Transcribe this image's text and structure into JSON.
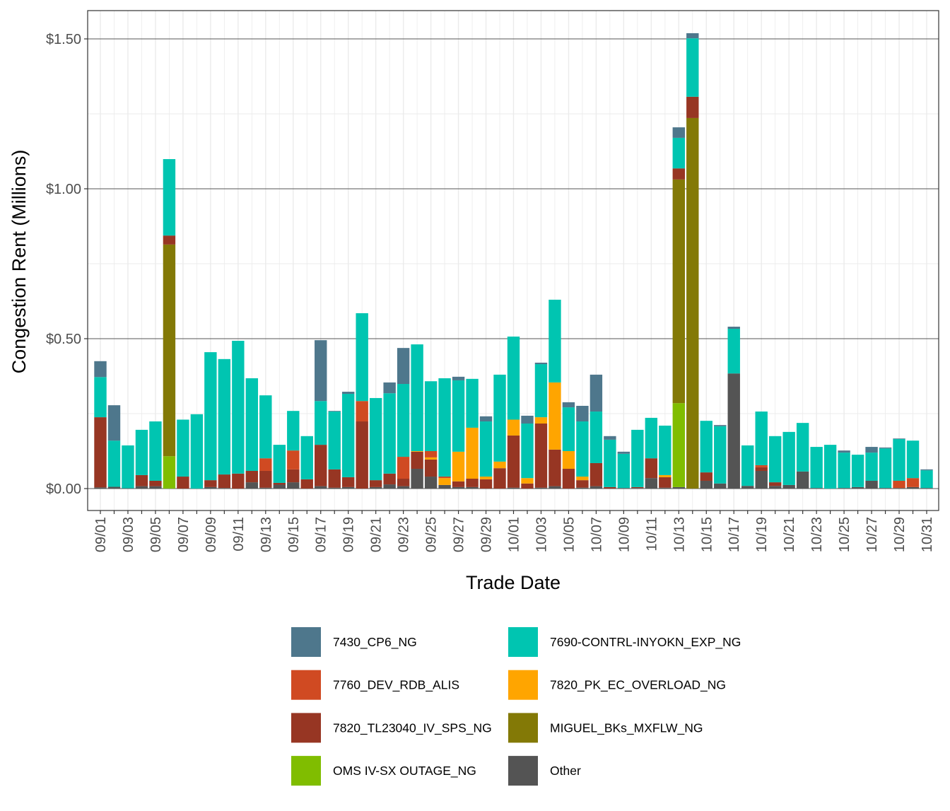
{
  "chart_data": {
    "type": "bar",
    "stacked": true,
    "title": "",
    "xlabel": "Trade Date",
    "ylabel": "Congestion Rent (Millions)",
    "ylim": [
      -0.075,
      1.58
    ],
    "yticks": [
      0,
      0.5,
      1.0,
      1.5
    ],
    "ytick_labels": [
      "$0.00",
      "$0.50",
      "$1.00",
      "$1.50"
    ],
    "grid": true,
    "legend_position": "bottom",
    "categories": [
      "09/01",
      "09/02",
      "09/03",
      "09/04",
      "09/05",
      "09/06",
      "09/07",
      "09/08",
      "09/09",
      "09/10",
      "09/11",
      "09/12",
      "09/13",
      "09/14",
      "09/15",
      "09/16",
      "09/17",
      "09/18",
      "09/19",
      "09/20",
      "09/21",
      "09/22",
      "09/23",
      "09/24",
      "09/25",
      "09/26",
      "09/27",
      "09/28",
      "09/29",
      "09/30",
      "10/01",
      "10/02",
      "10/03",
      "10/04",
      "10/05",
      "10/06",
      "10/07",
      "10/08",
      "10/09",
      "10/10",
      "10/11",
      "10/12",
      "10/13",
      "10/14",
      "10/15",
      "10/16",
      "10/17",
      "10/18",
      "10/19",
      "10/20",
      "10/21",
      "10/22",
      "10/23",
      "10/24",
      "10/25",
      "10/26",
      "10/27",
      "10/28",
      "10/29",
      "10/30",
      "10/31"
    ],
    "xtick_labels": [
      "09/01",
      "09/03",
      "09/05",
      "09/07",
      "09/09",
      "09/11",
      "09/13",
      "09/15",
      "09/17",
      "09/19",
      "09/21",
      "09/23",
      "09/25",
      "09/27",
      "09/29",
      "10/01",
      "10/03",
      "10/05",
      "10/07",
      "10/09",
      "10/11",
      "10/13",
      "10/15",
      "10/17",
      "10/19",
      "10/21",
      "10/23",
      "10/25",
      "10/27",
      "10/29",
      "10/31"
    ],
    "series": [
      {
        "name": "Other",
        "color": "#545454",
        "values": [
          0.004,
          0.006,
          0.001,
          0.008,
          0.008,
          0,
          0,
          0,
          0.005,
          0.002,
          0,
          0.021,
          0.003,
          0.013,
          0.021,
          0,
          0.008,
          0.003,
          0.005,
          0,
          0.005,
          0.014,
          0.008,
          0.066,
          0.04,
          0.012,
          0.005,
          0.005,
          0,
          0,
          0.003,
          0,
          0.003,
          0.008,
          0,
          0.003,
          0.008,
          0,
          0.002,
          0.002,
          0.035,
          0.003,
          0.005,
          0,
          0.026,
          0.017,
          0.384,
          0.009,
          0.059,
          0.009,
          0.012,
          0.057,
          0.002,
          0,
          0.002,
          0.005,
          0.026,
          0.002,
          0.002,
          0.005,
          0.002
        ]
      },
      {
        "name": "OMS IV-SX OUTAGE_NG",
        "color": "#80BD00",
        "values": [
          0,
          0,
          0,
          0,
          0,
          0.108,
          0,
          0,
          0,
          0,
          0,
          0,
          0,
          0,
          0,
          0,
          0,
          0,
          0,
          0,
          0,
          0,
          0,
          0,
          0,
          0,
          0,
          0,
          0,
          0,
          0,
          0,
          0,
          0,
          0,
          0,
          0,
          0,
          0,
          0,
          0,
          0,
          0.28,
          0,
          0,
          0,
          0,
          0,
          0,
          0,
          0,
          0,
          0,
          0,
          0,
          0,
          0,
          0,
          0,
          0,
          0
        ]
      },
      {
        "name": "MIGUEL_BKs_MXFLW_NG",
        "color": "#837906",
        "values": [
          0,
          0,
          0,
          0,
          0,
          0.706,
          0,
          0,
          0,
          0,
          0,
          0,
          0,
          0,
          0,
          0,
          0,
          0,
          0,
          0,
          0,
          0,
          0,
          0,
          0,
          0,
          0,
          0,
          0,
          0,
          0,
          0,
          0,
          0,
          0,
          0,
          0,
          0,
          0,
          0,
          0,
          0,
          0.746,
          1.236,
          0,
          0,
          0,
          0,
          0,
          0,
          0,
          0,
          0,
          0,
          0,
          0,
          0,
          0,
          0,
          0,
          0
        ]
      },
      {
        "name": "7820_TL23040_IV_SPS_NG",
        "color": "#973623",
        "values": [
          0.234,
          0,
          0,
          0.037,
          0.018,
          0.03,
          0.04,
          0,
          0.023,
          0.045,
          0.05,
          0.038,
          0.056,
          0.006,
          0.043,
          0.031,
          0.138,
          0.061,
          0.033,
          0.224,
          0.023,
          0.036,
          0.025,
          0.057,
          0.057,
          0,
          0.019,
          0.028,
          0.031,
          0.068,
          0.174,
          0.017,
          0.214,
          0.122,
          0.066,
          0.025,
          0.077,
          0.005,
          0,
          0.003,
          0.066,
          0.035,
          0.037,
          0.071,
          0.028,
          0,
          0,
          0,
          0.012,
          0.012,
          0,
          0,
          0,
          0,
          0,
          0,
          0,
          0,
          0,
          0,
          0
        ]
      },
      {
        "name": "7820_PK_EC_OVERLOAD_NG",
        "color": "#FFA500",
        "values": [
          0,
          0,
          0,
          0,
          0,
          0,
          0,
          0,
          0,
          0,
          0,
          0,
          0,
          0,
          0,
          0,
          0,
          0,
          0,
          0,
          0,
          0,
          0,
          0.002,
          0.007,
          0.023,
          0.099,
          0.17,
          0.009,
          0.022,
          0.053,
          0.018,
          0.021,
          0.224,
          0.059,
          0.012,
          0,
          0,
          0,
          0,
          0,
          0.007,
          0,
          0,
          0,
          0,
          0,
          0,
          0,
          0,
          0,
          0,
          0,
          0,
          0,
          0,
          0,
          0,
          0,
          0,
          0
        ]
      },
      {
        "name": "7760_DEV_RDB_ALIS",
        "color": "#D04A22",
        "values": [
          0,
          0,
          0,
          0,
          0,
          0,
          0,
          0,
          0,
          0,
          0,
          0,
          0.042,
          0,
          0.063,
          0,
          0,
          0,
          0,
          0.068,
          0,
          0,
          0.073,
          0,
          0.021,
          0.005,
          0,
          0,
          0,
          0,
          0,
          0,
          0,
          0,
          0,
          0,
          0,
          0,
          0,
          0,
          0,
          0,
          0,
          0,
          0,
          0,
          0,
          0,
          0.007,
          0,
          0,
          0,
          0,
          0,
          0,
          0,
          0,
          0,
          0.024,
          0.03,
          0
        ]
      },
      {
        "name": "7690-CONTRL-INYOKN_EXP_NG",
        "color": "#00C5B1",
        "values": [
          0.134,
          0.154,
          0.143,
          0.151,
          0.198,
          0.255,
          0.19,
          0.248,
          0.427,
          0.385,
          0.443,
          0.309,
          0.21,
          0.127,
          0.132,
          0.144,
          0.146,
          0.193,
          0.278,
          0.293,
          0.274,
          0.268,
          0.243,
          0.356,
          0.233,
          0.328,
          0.238,
          0.163,
          0.184,
          0.29,
          0.277,
          0.182,
          0.177,
          0.276,
          0.146,
          0.184,
          0.172,
          0.158,
          0.114,
          0.191,
          0.135,
          0.165,
          0.102,
          0.195,
          0.172,
          0.191,
          0.149,
          0.135,
          0.179,
          0.154,
          0.177,
          0.162,
          0.137,
          0.146,
          0.118,
          0.108,
          0.094,
          0.132,
          0.139,
          0.125,
          0.059
        ]
      },
      {
        "name": "7430_CP6_NG",
        "color": "#4E778C",
        "values": [
          0.053,
          0.118,
          0,
          0,
          0,
          0,
          0,
          0,
          0,
          0,
          0,
          0,
          0,
          0,
          0,
          0,
          0.203,
          0.002,
          0.007,
          0,
          0,
          0.036,
          0.12,
          0,
          0,
          0,
          0.012,
          0,
          0.017,
          0,
          0,
          0.026,
          0.005,
          0,
          0.017,
          0.052,
          0.123,
          0.012,
          0.007,
          0,
          0,
          0,
          0.035,
          0.017,
          0,
          0.004,
          0.007,
          0,
          0,
          0,
          0,
          0,
          0,
          0,
          0.007,
          0,
          0.019,
          0.003,
          0.002,
          0,
          0.003
        ]
      }
    ],
    "legend_order": [
      "7430_CP6_NG",
      "7690-CONTRL-INYOKN_EXP_NG",
      "7760_DEV_RDB_ALIS",
      "7820_PK_EC_OVERLOAD_NG",
      "7820_TL23040_IV_SPS_NG",
      "MIGUEL_BKs_MXFLW_NG",
      "OMS IV-SX OUTAGE_NG",
      "Other"
    ]
  }
}
